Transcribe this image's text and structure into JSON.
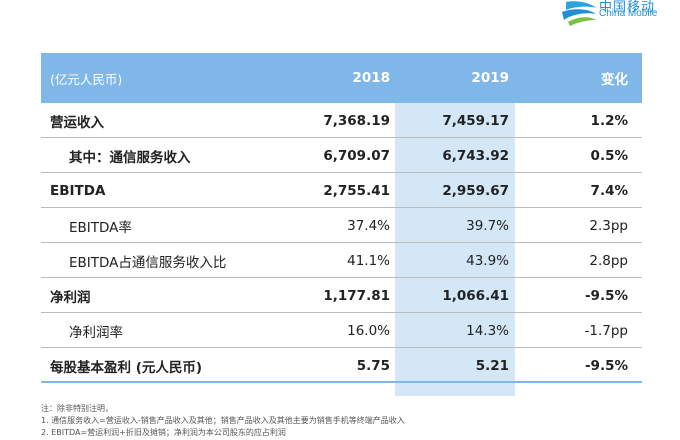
{
  "logo": {
    "cn": "中国移动",
    "en": "China Mobile"
  },
  "table": {
    "header": {
      "unit": "(亿元人民币)",
      "col1": "2018",
      "col2": "2019",
      "col3": "变化"
    },
    "rows": [
      {
        "label": "营运收入",
        "v2018": "7,368.19",
        "v2019": "7,459.17",
        "change": "1.2%",
        "bold": true,
        "indent": false
      },
      {
        "label": "其中：通信服务收入",
        "v2018": "6,709.07",
        "v2019": "6,743.92",
        "change": "0.5%",
        "bold": true,
        "indent": true
      },
      {
        "label": "EBITDA",
        "v2018": "2,755.41",
        "v2019": "2,959.67",
        "change": "7.4%",
        "bold": true,
        "indent": false
      },
      {
        "label": "EBITDA率",
        "v2018": "37.4%",
        "v2019": "39.7%",
        "change": "2.3pp",
        "bold": false,
        "indent": true
      },
      {
        "label": "EBITDA占通信服务收入比",
        "v2018": "41.1%",
        "v2019": "43.9%",
        "change": "2.8pp",
        "bold": false,
        "indent": true
      },
      {
        "label": "净利润",
        "v2018": "1,177.81",
        "v2019": "1,066.41",
        "change": "-9.5%",
        "bold": true,
        "indent": false
      },
      {
        "label": "净利润率",
        "v2018": "16.0%",
        "v2019": "14.3%",
        "change": "-1.7pp",
        "bold": false,
        "indent": true
      },
      {
        "label": "每股基本盈利 (元人民币)",
        "v2018": "5.75",
        "v2019": "5.21",
        "change": "-9.5%",
        "bold": true,
        "indent": false
      }
    ]
  },
  "notes": {
    "title": "注：除非特别注明，",
    "line1": "1.  通信服务收入=营运收入-销售产品收入及其他；销售产品收入及其他主要为销售手机等终端产品收入",
    "line2": "2.  EBITDA=营运利润+折旧及摊销；净利润为本公司股东的应占利润"
  }
}
